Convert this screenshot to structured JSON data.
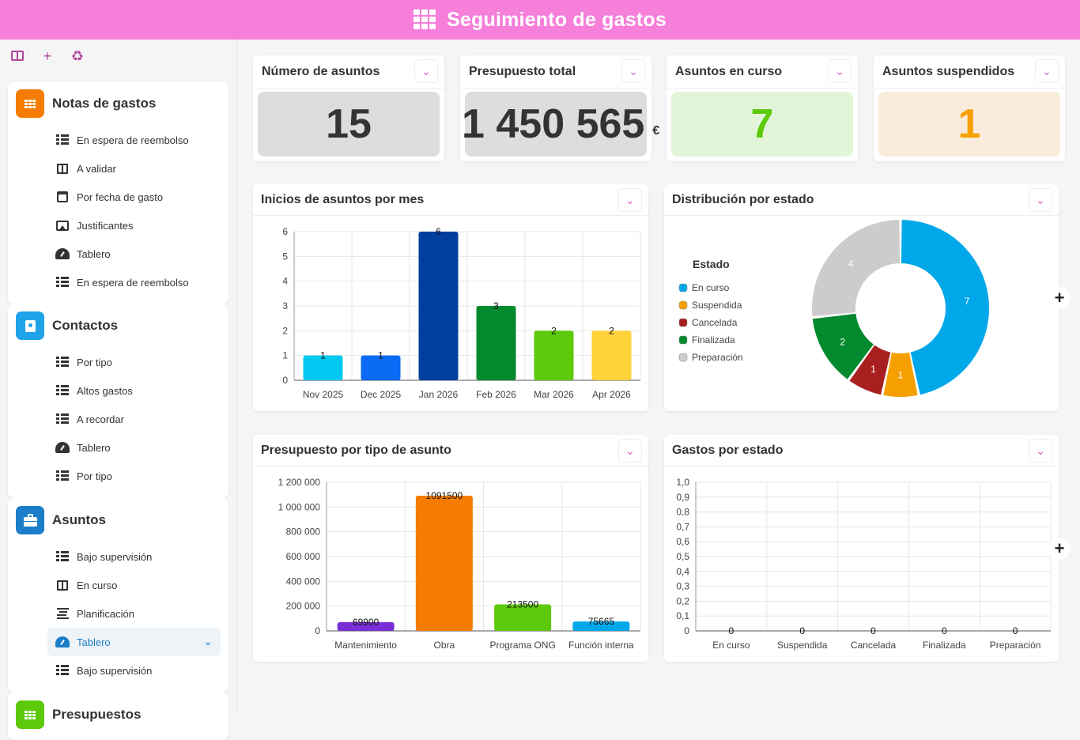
{
  "app": {
    "title": "Seguimiento de gastos"
  },
  "sidebar": {
    "panels": [
      {
        "title": "Notas de gastos",
        "color": "#f57c00",
        "icon": "grid-icon",
        "items": [
          {
            "label": "En espera de reembolso",
            "icon": "table-icon"
          },
          {
            "label": "A validar",
            "icon": "board-icon"
          },
          {
            "label": "Por fecha de gasto",
            "icon": "calendar-icon"
          },
          {
            "label": "Justificantes",
            "icon": "image-icon"
          },
          {
            "label": "Tablero",
            "icon": "gauge-icon"
          },
          {
            "label": "En espera de reembolso",
            "icon": "table-icon"
          }
        ]
      },
      {
        "title": "Contactos",
        "color": "#1fa3e8",
        "icon": "contact-card-icon",
        "items": [
          {
            "label": "Por tipo",
            "icon": "table-icon"
          },
          {
            "label": "Altos gastos",
            "icon": "table-icon"
          },
          {
            "label": "A recordar",
            "icon": "table-icon"
          },
          {
            "label": "Tablero",
            "icon": "gauge-icon"
          },
          {
            "label": "Por tipo",
            "icon": "table-icon"
          }
        ]
      },
      {
        "title": "Asuntos",
        "color": "#1a7ec8",
        "icon": "briefcase-icon",
        "items": [
          {
            "label": "Bajo supervisión",
            "icon": "table-icon"
          },
          {
            "label": "En curso",
            "icon": "board-icon"
          },
          {
            "label": "Planificación",
            "icon": "gantt-icon"
          },
          {
            "label": "Tablero",
            "icon": "gauge-icon",
            "active": true
          },
          {
            "label": "Bajo supervisión",
            "icon": "table-icon"
          }
        ]
      },
      {
        "title": "Presupuestos",
        "color": "#5cc90a",
        "icon": "grid-icon",
        "items": []
      }
    ]
  },
  "kpis": [
    {
      "label": "Número de asuntos",
      "value": "15",
      "bg": "#dddddd",
      "fg": "#333333"
    },
    {
      "label": "Presupuesto total",
      "value": "1 450 565",
      "unit": "€",
      "bg": "#dddddd",
      "fg": "#333333"
    },
    {
      "label": "Asuntos en curso",
      "value": "7",
      "bg": "#e2f5d9",
      "fg": "#5cc90a"
    },
    {
      "label": "Asuntos suspendidos",
      "value": "1",
      "bg": "#f9ecdc",
      "fg": "#f5a000"
    }
  ],
  "cards": {
    "monthly": {
      "title": "Inicios de asuntos por mes"
    },
    "status": {
      "title": "Distribución por estado"
    },
    "budget": {
      "title": "Presupuesto por tipo de asunto"
    },
    "spend": {
      "title": "Gastos por estado"
    }
  },
  "chart_data": [
    {
      "type": "bar",
      "title": "Inicios de asuntos por mes",
      "categories": [
        "Nov 2025",
        "Dec 2025",
        "Jan 2026",
        "Feb 2026",
        "Mar 2026",
        "Apr 2026"
      ],
      "values": [
        1,
        1,
        6,
        3,
        2,
        2
      ],
      "colors": [
        "#00c8f0",
        "#0a6cf5",
        "#003f9e",
        "#048a2e",
        "#5cc90a",
        "#ffd23a"
      ],
      "ylim": [
        0,
        6
      ],
      "yticks": [
        "0",
        "1",
        "2",
        "3",
        "4",
        "5",
        "6"
      ],
      "grid": true
    },
    {
      "type": "pie",
      "title": "Distribución por estado",
      "legend_title": "Estado",
      "legend_position": "left",
      "labels": [
        "En curso",
        "Suspendida",
        "Cancelada",
        "Finalizada",
        "Preparación"
      ],
      "values": [
        7,
        1,
        1,
        2,
        4
      ],
      "colors": [
        "#00a8ea",
        "#f5a000",
        "#a81f1f",
        "#048a2e",
        "#cccccc"
      ]
    },
    {
      "type": "bar",
      "title": "Presupuesto por tipo de asunto",
      "categories": [
        "Mantenimiento",
        "Obra",
        "Programa ONG",
        "Función interna"
      ],
      "values": [
        69900,
        1091500,
        213500,
        75665
      ],
      "colors": [
        "#7a2fd6",
        "#f57c00",
        "#5cc90a",
        "#00a8ea"
      ],
      "ylim": [
        0,
        1200000
      ],
      "yticks": [
        "0",
        "200 000",
        "400 000",
        "600 000",
        "800 000",
        "1 000 000",
        "1 200 000"
      ],
      "grid": true
    },
    {
      "type": "bar",
      "title": "Gastos por estado",
      "categories": [
        "En curso",
        "Suspendida",
        "Cancelada",
        "Finalizada",
        "Preparación"
      ],
      "values": [
        0,
        0,
        0,
        0,
        0
      ],
      "ylim": [
        0,
        1
      ],
      "yticks": [
        "0",
        "0,1",
        "0,2",
        "0,3",
        "0,4",
        "0,5",
        "0,6",
        "0,7",
        "0,8",
        "0,9",
        "1,0"
      ],
      "grid": true
    }
  ]
}
